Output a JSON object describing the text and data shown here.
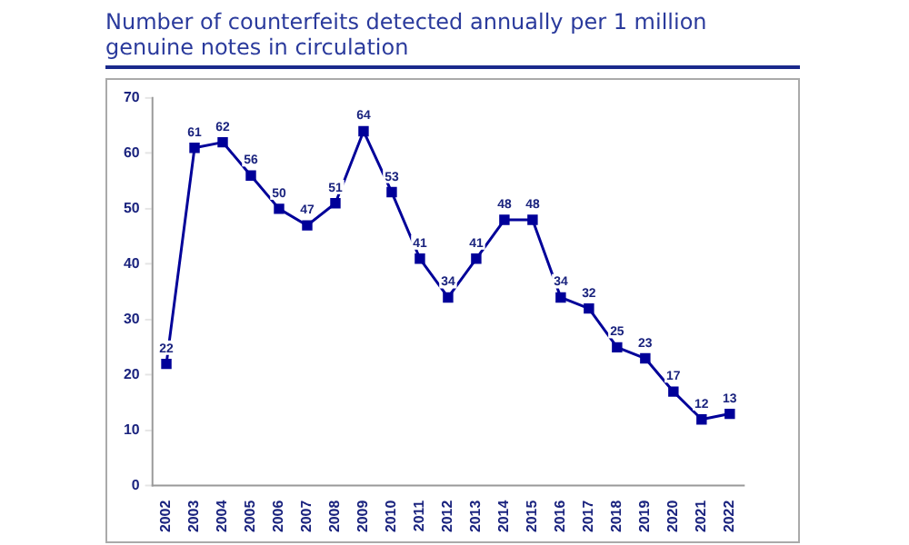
{
  "chart_data": {
    "type": "line",
    "title": "Number of counterfeits detected annually per 1 million genuine notes in circulation",
    "categories": [
      "2002",
      "2003",
      "2004",
      "2005",
      "2006",
      "2007",
      "2008",
      "2009",
      "2010",
      "2011",
      "2012",
      "2013",
      "2014",
      "2015",
      "2016",
      "2017",
      "2018",
      "2019",
      "2020",
      "2021",
      "2022"
    ],
    "series": [
      {
        "color": "#000099",
        "values": [
          22,
          61,
          62,
          56,
          50,
          47,
          51,
          64,
          53,
          41,
          34,
          41,
          48,
          48,
          34,
          32,
          25,
          23,
          17,
          12,
          13
        ]
      }
    ],
    "ylim": [
      0,
      70
    ],
    "yticks": [
      0,
      10,
      20,
      30,
      40,
      50,
      60,
      70
    ],
    "grid": false,
    "legend": false,
    "marker": "square",
    "line_style": "solid",
    "data_labels": true
  }
}
